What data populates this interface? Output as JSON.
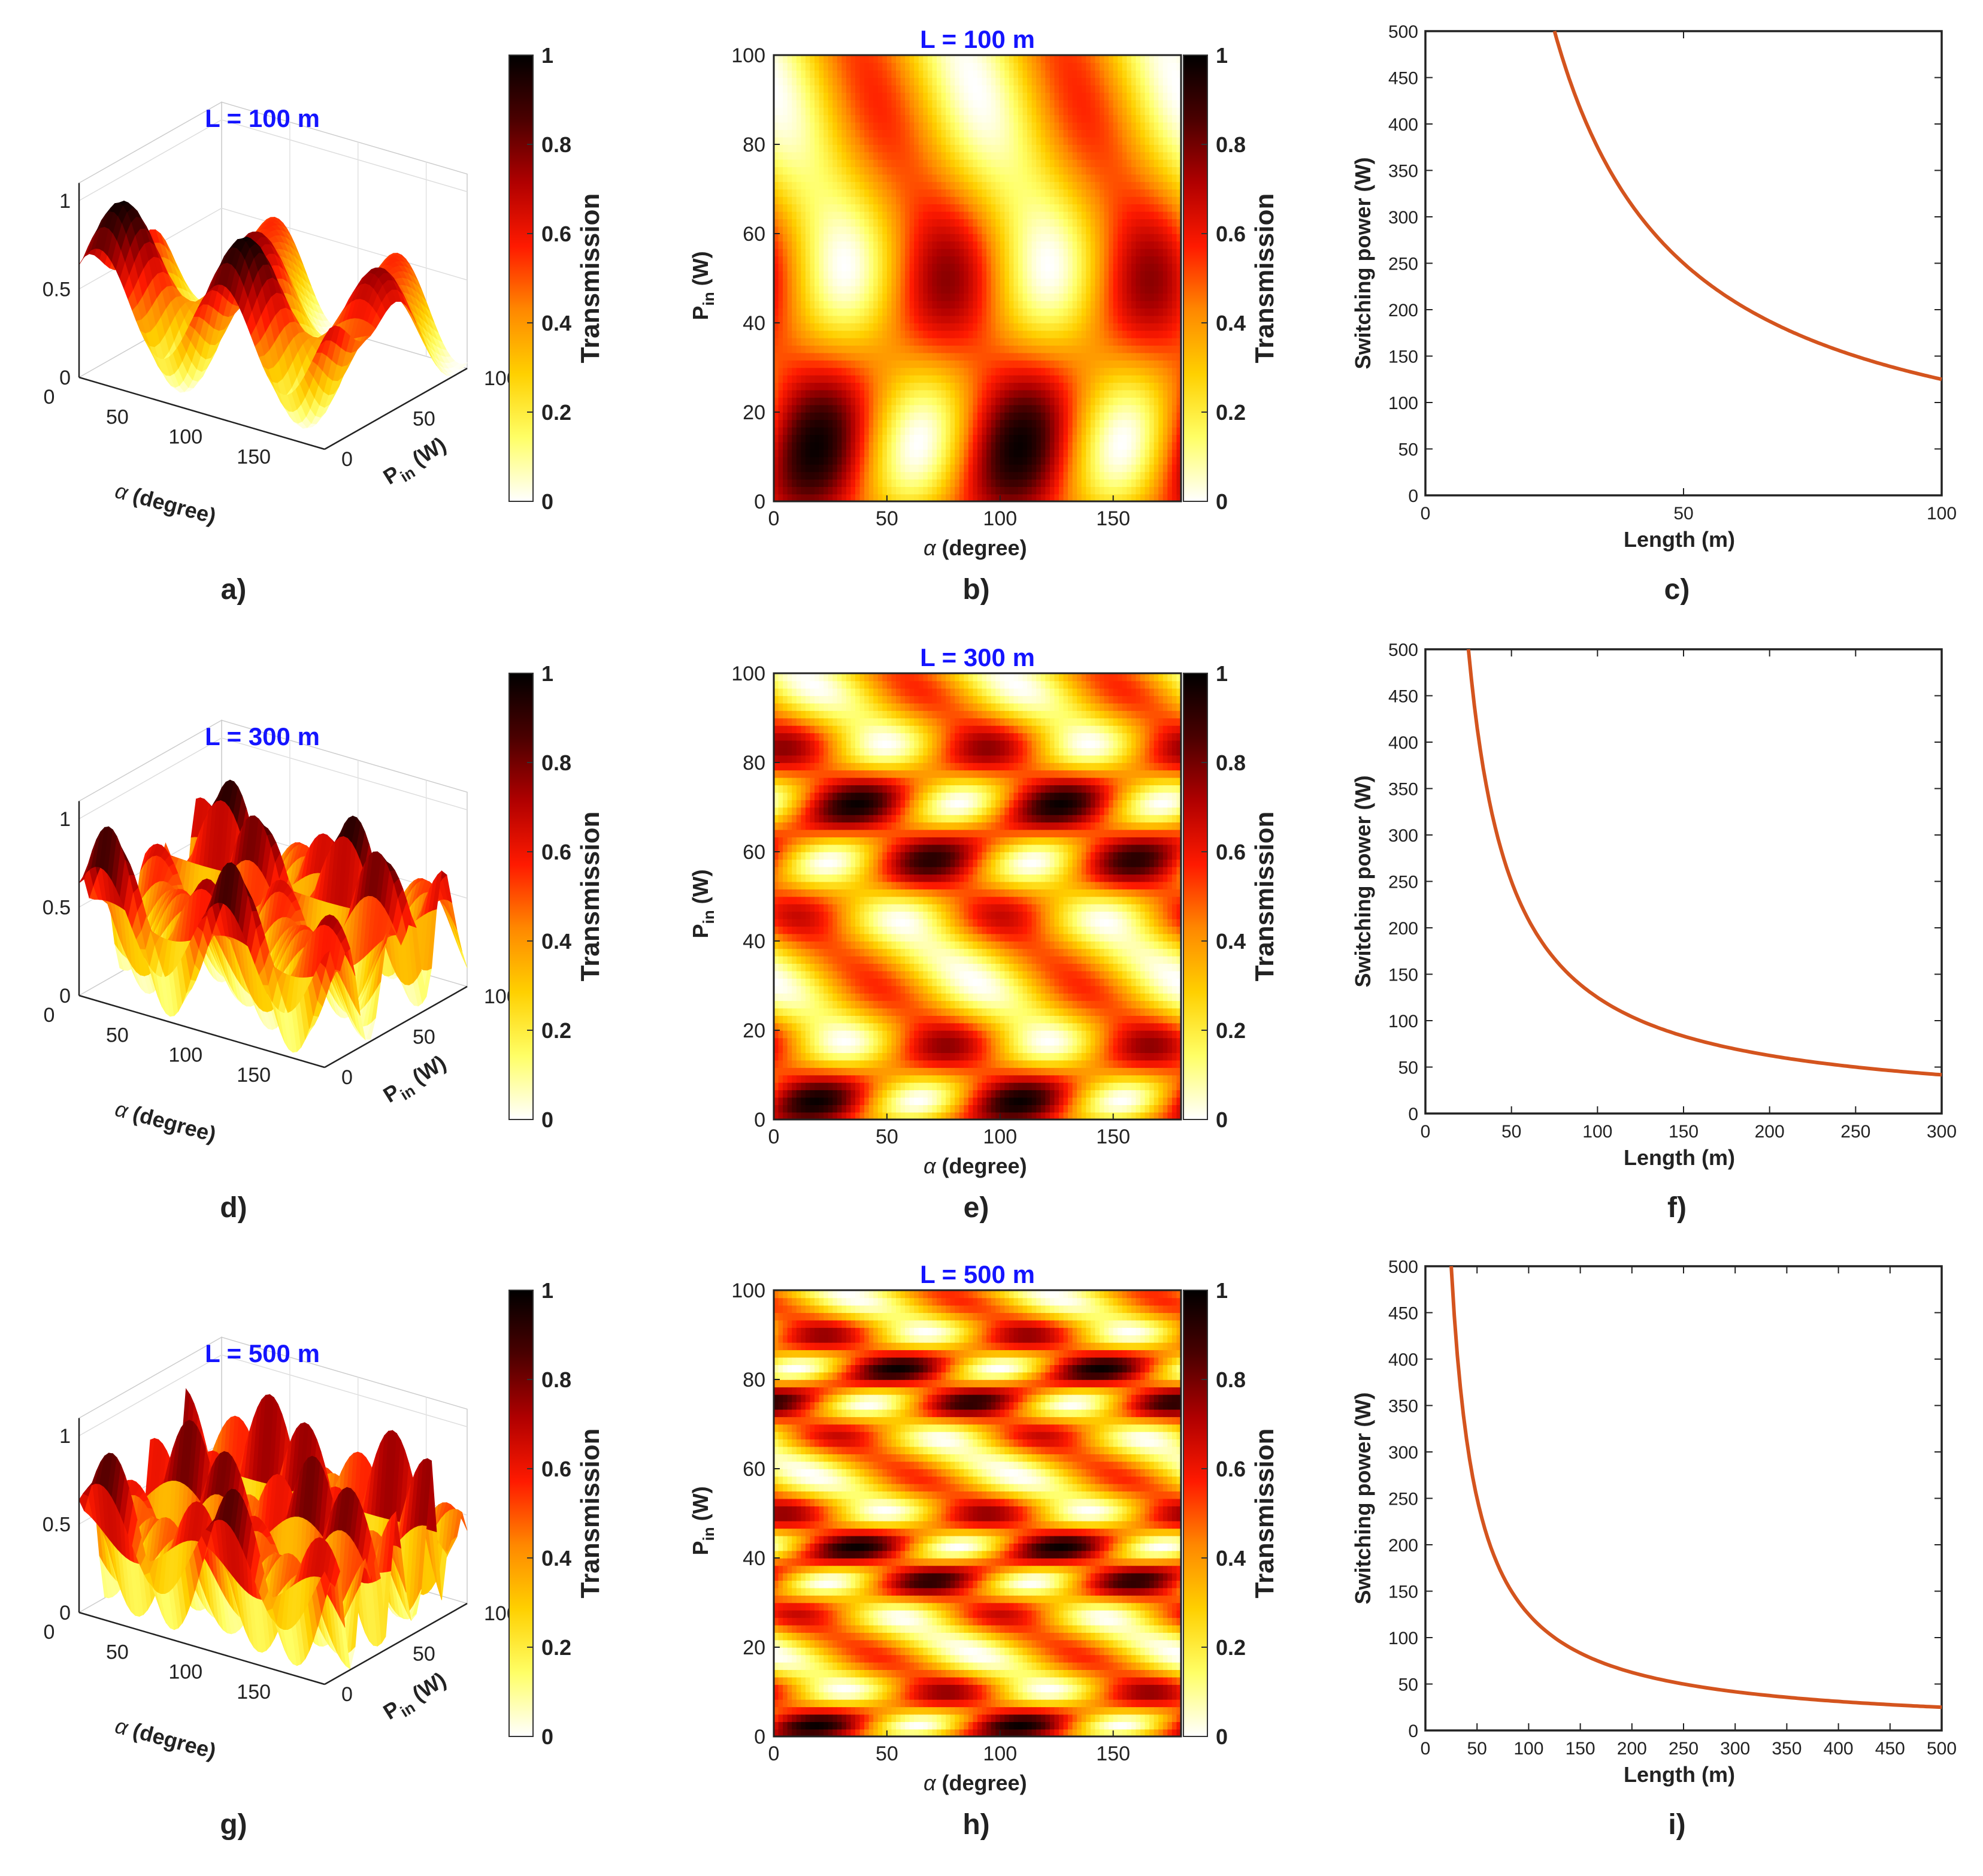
{
  "figure": {
    "panel_labels": [
      "a)",
      "b)",
      "c)",
      "d)",
      "e)",
      "f)",
      "g)",
      "h)",
      "i)"
    ],
    "colorbar": {
      "label": "Transmission",
      "ticks": [
        "0",
        "0.2",
        "0.4",
        "0.6",
        "0.8",
        "1"
      ],
      "colormap": [
        "#ffffff",
        "#ffff66",
        "#ffd000",
        "#ff8800",
        "#ff1a00",
        "#b00000",
        "#4a0000",
        "#000000"
      ]
    },
    "line_color": "#d4541e",
    "title_color": "#1414ff"
  },
  "chart_data": [
    {
      "panel": "a)",
      "type": "surface3d",
      "title": "L = 100 m",
      "xlabel": "α (degree)",
      "ylabel": "P in (W)",
      "zlabel": "",
      "x_ticks": [
        "0",
        "50",
        "100",
        "150"
      ],
      "y_ticks": [
        "0",
        "50",
        "100"
      ],
      "z_ticks": [
        "0",
        "0.5",
        "1"
      ],
      "xlim": [
        0,
        180
      ],
      "ylim": [
        0,
        100
      ],
      "zlim": [
        0,
        1
      ],
      "length_m": 100
    },
    {
      "panel": "b)",
      "type": "heatmap",
      "title": "L = 100 m",
      "xlabel": "α (degree)",
      "ylabel": "P in (W)",
      "x_ticks": [
        "0",
        "50",
        "100",
        "150"
      ],
      "y_ticks": [
        "0",
        "20",
        "40",
        "60",
        "80",
        "100"
      ],
      "xlim": [
        0,
        180
      ],
      "ylim": [
        0,
        100
      ],
      "length_m": 100
    },
    {
      "panel": "c)",
      "type": "line",
      "xlabel": "Length (m)",
      "ylabel": "Switching power  (W)",
      "xlim": [
        0,
        100
      ],
      "ylim": [
        0,
        500
      ],
      "x_ticks": [
        "0",
        "50",
        "100"
      ],
      "y_ticks": [
        "0",
        "50",
        "100",
        "150",
        "200",
        "250",
        "300",
        "350",
        "400",
        "450",
        "500"
      ],
      "series": [
        {
          "x": [
            25,
            30,
            40,
            50,
            60,
            70,
            80,
            90,
            100
          ],
          "y": [
            500,
            417,
            313,
            250,
            208,
            179,
            156,
            139,
            125
          ]
        }
      ]
    },
    {
      "panel": "d)",
      "type": "surface3d",
      "title": "L = 300 m",
      "xlabel": "α (degree)",
      "ylabel": "P in (W)",
      "zlabel": "",
      "x_ticks": [
        "0",
        "50",
        "100",
        "150"
      ],
      "y_ticks": [
        "0",
        "50",
        "100"
      ],
      "z_ticks": [
        "0",
        "0.5",
        "1"
      ],
      "xlim": [
        0,
        180
      ],
      "ylim": [
        0,
        100
      ],
      "zlim": [
        0,
        1
      ],
      "length_m": 300
    },
    {
      "panel": "e)",
      "type": "heatmap",
      "title": "L = 300 m",
      "xlabel": "α (degree)",
      "ylabel": "P in (W)",
      "x_ticks": [
        "0",
        "50",
        "100",
        "150"
      ],
      "y_ticks": [
        "0",
        "20",
        "40",
        "60",
        "80",
        "100"
      ],
      "xlim": [
        0,
        180
      ],
      "ylim": [
        0,
        100
      ],
      "length_m": 300
    },
    {
      "panel": "f)",
      "type": "line",
      "xlabel": "Length (m)",
      "ylabel": "Switching power  (W)",
      "xlim": [
        0,
        300
      ],
      "ylim": [
        0,
        500
      ],
      "x_ticks": [
        "0",
        "50",
        "100",
        "150",
        "200",
        "250",
        "300"
      ],
      "y_ticks": [
        "0",
        "50",
        "100",
        "150",
        "200",
        "250",
        "300",
        "350",
        "400",
        "450",
        "500"
      ],
      "series": [
        {
          "x": [
            25,
            35,
            50,
            75,
            100,
            150,
            200,
            250,
            300
          ],
          "y": [
            500,
            357,
            250,
            167,
            125,
            83,
            63,
            50,
            42
          ]
        }
      ]
    },
    {
      "panel": "g)",
      "type": "surface3d",
      "title": "L = 500 m",
      "xlabel": "α (degree)",
      "ylabel": "P in (W)",
      "zlabel": "",
      "x_ticks": [
        "0",
        "50",
        "100",
        "150"
      ],
      "y_ticks": [
        "0",
        "50",
        "100"
      ],
      "z_ticks": [
        "0",
        "0.5",
        "1"
      ],
      "xlim": [
        0,
        180
      ],
      "ylim": [
        0,
        100
      ],
      "zlim": [
        0,
        1
      ],
      "length_m": 500
    },
    {
      "panel": "h)",
      "type": "heatmap",
      "title": "L = 500 m",
      "xlabel": "α (degree)",
      "ylabel": "P in (W)",
      "x_ticks": [
        "0",
        "50",
        "100",
        "150"
      ],
      "y_ticks": [
        "0",
        "20",
        "40",
        "60",
        "80",
        "100"
      ],
      "xlim": [
        0,
        180
      ],
      "ylim": [
        0,
        100
      ],
      "length_m": 500
    },
    {
      "panel": "i)",
      "type": "line",
      "xlabel": "Length (m)",
      "ylabel": "Switching power  (W)",
      "xlim": [
        0,
        500
      ],
      "ylim": [
        0,
        500
      ],
      "x_ticks": [
        "0",
        "50",
        "100",
        "150",
        "200",
        "250",
        "300",
        "350",
        "400",
        "450",
        "500"
      ],
      "y_ticks": [
        "0",
        "50",
        "100",
        "150",
        "200",
        "250",
        "300",
        "350",
        "400",
        "450",
        "500"
      ],
      "series": [
        {
          "x": [
            25,
            40,
            60,
            100,
            150,
            200,
            300,
            400,
            500
          ],
          "y": [
            500,
            313,
            208,
            125,
            83,
            63,
            42,
            31,
            25
          ]
        }
      ]
    }
  ]
}
